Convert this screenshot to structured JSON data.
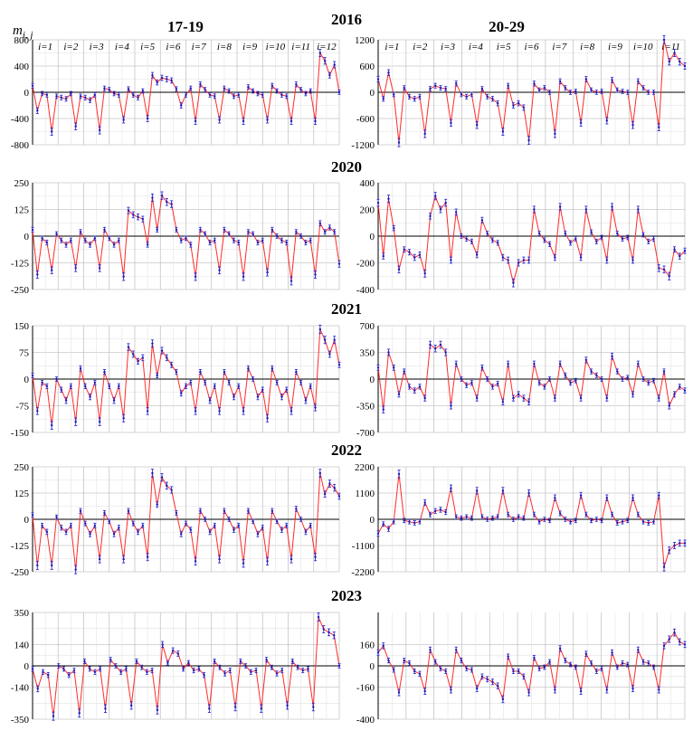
{
  "figure": {
    "y_label": "m",
    "y_label_sub": "i, j",
    "columns": [
      "17-19",
      "20-29"
    ],
    "group_prefix": "i="
  },
  "chart_data": [
    {
      "type": "line",
      "year": "2016",
      "age_group": "17-19",
      "ylim": [
        -800,
        800
      ],
      "yticks": [
        -800,
        -400,
        0,
        400,
        800
      ],
      "groups": [
        "1",
        "2",
        "3",
        "4",
        "5",
        "6",
        "7",
        "8",
        "9",
        "10",
        "11",
        "12"
      ],
      "series": [
        {
          "name": "m_ij",
          "values": [
            100,
            -280,
            -20,
            -40,
            -600,
            -60,
            -80,
            -100,
            -20,
            -520,
            -60,
            -80,
            -120,
            -40,
            -580,
            60,
            40,
            -20,
            -40,
            -420,
            50,
            -40,
            -80,
            20,
            -400,
            260,
            150,
            220,
            200,
            180,
            50,
            -200,
            -40,
            60,
            -440,
            120,
            40,
            -40,
            -60,
            -420,
            60,
            20,
            -60,
            -40,
            -440,
            80,
            20,
            -20,
            -40,
            -420,
            100,
            20,
            -40,
            -60,
            -440,
            120,
            40,
            -20,
            20,
            -440,
            600,
            480,
            260,
            420,
            0
          ]
        }
      ]
    },
    {
      "type": "line",
      "year": "2016",
      "age_group": "20-29",
      "ylim": [
        -1200,
        1200
      ],
      "yticks": [
        -1200,
        -600,
        0,
        600,
        1200
      ],
      "groups": [
        "1",
        "2",
        "3",
        "4",
        "5",
        "6",
        "7",
        "8",
        "9",
        "10",
        "11"
      ],
      "series": [
        {
          "name": "m_ij",
          "values": [
            300,
            -150,
            450,
            -50,
            -1150,
            100,
            -100,
            -150,
            -100,
            -950,
            80,
            150,
            100,
            80,
            -700,
            200,
            -50,
            -100,
            -50,
            -750,
            80,
            -100,
            -150,
            -250,
            -900,
            150,
            -300,
            -250,
            -350,
            -1100,
            200,
            50,
            100,
            0,
            -950,
            250,
            100,
            0,
            20,
            -700,
            300,
            50,
            0,
            20,
            -650,
            280,
            50,
            20,
            0,
            -750,
            250,
            100,
            0,
            0,
            -800,
            1200,
            700,
            900,
            700,
            600
          ]
        }
      ]
    },
    {
      "type": "line",
      "year": "2020",
      "age_group": "17-19",
      "ylim": [
        -250,
        250
      ],
      "yticks": [
        -250,
        -125,
        0,
        125,
        250
      ],
      "groups": [
        "1",
        "2",
        "3",
        "4",
        "5",
        "6",
        "7",
        "8",
        "9",
        "10",
        "11",
        "12"
      ],
      "series": [
        {
          "name": "m_ij",
          "values": [
            30,
            -180,
            -10,
            -30,
            -160,
            10,
            -20,
            -40,
            -20,
            -150,
            20,
            -20,
            -40,
            -10,
            -150,
            30,
            -10,
            -40,
            -20,
            -190,
            120,
            100,
            90,
            80,
            -40,
            180,
            30,
            190,
            160,
            150,
            30,
            -20,
            -10,
            -40,
            -190,
            30,
            10,
            -30,
            -20,
            -160,
            30,
            10,
            -20,
            -30,
            -190,
            20,
            10,
            -30,
            -20,
            -170,
            30,
            0,
            -20,
            -30,
            -210,
            20,
            0,
            -30,
            -20,
            -180,
            60,
            20,
            40,
            20,
            -130
          ]
        }
      ]
    },
    {
      "type": "line",
      "year": "2020",
      "age_group": "20-29",
      "ylim": [
        -400,
        400
      ],
      "yticks": [
        -400,
        -200,
        0,
        200,
        400
      ],
      "groups": [
        "1",
        "2",
        "3",
        "4",
        "5",
        "6",
        "7",
        "8",
        "9",
        "10",
        "11"
      ],
      "series": [
        {
          "name": "m_ij",
          "values": [
            250,
            -150,
            280,
            60,
            -250,
            -100,
            -120,
            -160,
            -140,
            -280,
            150,
            300,
            200,
            250,
            -180,
            180,
            0,
            -20,
            -40,
            -140,
            120,
            20,
            -30,
            -50,
            -160,
            -180,
            -350,
            -200,
            -180,
            -180,
            200,
            20,
            -30,
            -60,
            -160,
            220,
            20,
            -50,
            -20,
            -160,
            200,
            30,
            -40,
            -10,
            -180,
            220,
            20,
            -20,
            -10,
            -180,
            200,
            10,
            -40,
            -20,
            -240,
            -250,
            -300,
            -100,
            -150,
            -110
          ]
        }
      ]
    },
    {
      "type": "line",
      "year": "2021",
      "age_group": "17-19",
      "ylim": [
        -150,
        150
      ],
      "yticks": [
        -150,
        -75,
        0,
        75,
        150
      ],
      "groups": [
        "1",
        "2",
        "3",
        "4",
        "5",
        "6",
        "7",
        "8",
        "9",
        "10",
        "11",
        "12"
      ],
      "series": [
        {
          "name": "m_ij",
          "values": [
            10,
            -90,
            -10,
            -20,
            -130,
            0,
            -30,
            -60,
            -20,
            -120,
            30,
            -20,
            -50,
            -10,
            -120,
            20,
            -20,
            -60,
            -20,
            -110,
            90,
            70,
            50,
            60,
            -90,
            100,
            10,
            80,
            60,
            40,
            20,
            -40,
            -20,
            -10,
            -90,
            20,
            -10,
            -60,
            -20,
            -90,
            20,
            -10,
            -50,
            -20,
            -90,
            30,
            0,
            -50,
            -30,
            -110,
            30,
            -10,
            -50,
            -30,
            -90,
            20,
            -10,
            -60,
            -20,
            -80,
            140,
            110,
            70,
            110,
            40
          ]
        }
      ]
    },
    {
      "type": "line",
      "year": "2021",
      "age_group": "20-29",
      "ylim": [
        -700,
        700
      ],
      "yticks": [
        -700,
        -350,
        0,
        350,
        700
      ],
      "groups": [
        "1",
        "2",
        "3",
        "4",
        "5",
        "6",
        "7",
        "8",
        "9",
        "10",
        "11"
      ],
      "series": [
        {
          "name": "m_ij",
          "values": [
            150,
            -400,
            350,
            150,
            -200,
            100,
            -100,
            -150,
            -100,
            -250,
            450,
            400,
            450,
            350,
            -350,
            200,
            0,
            -80,
            -50,
            -250,
            150,
            0,
            -100,
            -60,
            -300,
            200,
            -250,
            -200,
            -250,
            -300,
            200,
            -50,
            -100,
            0,
            -250,
            200,
            50,
            -50,
            -20,
            -250,
            250,
            100,
            50,
            0,
            -250,
            300,
            100,
            0,
            20,
            -200,
            200,
            0,
            -50,
            -20,
            -250,
            100,
            -350,
            -200,
            -100,
            -150
          ]
        }
      ]
    },
    {
      "type": "line",
      "year": "2022",
      "age_group": "17-19",
      "ylim": [
        -250,
        250
      ],
      "yticks": [
        -250,
        -125,
        0,
        125,
        250
      ],
      "groups": [
        "1",
        "2",
        "3",
        "4",
        "5",
        "6",
        "7",
        "8",
        "9",
        "10",
        "11",
        "12"
      ],
      "series": [
        {
          "name": "m_ij",
          "values": [
            20,
            -220,
            -30,
            -60,
            -220,
            10,
            -40,
            -60,
            -30,
            -240,
            40,
            -20,
            -70,
            -30,
            -190,
            30,
            -10,
            -70,
            -40,
            -190,
            40,
            -20,
            -60,
            -30,
            -180,
            220,
            70,
            200,
            160,
            140,
            30,
            -70,
            -20,
            -50,
            -200,
            40,
            0,
            -60,
            -30,
            -190,
            40,
            0,
            -50,
            -30,
            -210,
            40,
            -10,
            -70,
            -40,
            -200,
            40,
            -10,
            -50,
            -30,
            -190,
            50,
            0,
            -60,
            -30,
            -180,
            220,
            120,
            170,
            150,
            110
          ]
        }
      ]
    },
    {
      "type": "line",
      "year": "2022",
      "age_group": "20-29",
      "ylim": [
        -2200,
        2200
      ],
      "yticks": [
        -2200,
        -1100,
        0,
        1100,
        2200
      ],
      "groups": [
        "1",
        "2",
        "3",
        "4",
        "5",
        "6",
        "7",
        "8",
        "9",
        "10",
        "11"
      ],
      "series": [
        {
          "name": "m_ij",
          "values": [
            -600,
            -200,
            -400,
            -100,
            1900,
            -50,
            -100,
            -150,
            -100,
            700,
            200,
            350,
            400,
            300,
            1300,
            100,
            50,
            100,
            50,
            1200,
            100,
            0,
            50,
            100,
            1200,
            200,
            0,
            100,
            50,
            1100,
            200,
            -100,
            0,
            -50,
            900,
            250,
            0,
            -100,
            -50,
            1000,
            200,
            -50,
            0,
            -50,
            900,
            200,
            -150,
            -100,
            -50,
            900,
            200,
            -100,
            -150,
            -100,
            1000,
            -2000,
            -1300,
            -1100,
            -1000,
            -1000
          ]
        }
      ]
    },
    {
      "type": "line",
      "year": "2023",
      "age_group": "17-19",
      "ylim": [
        -350,
        350
      ],
      "yticks": [
        -350,
        -140,
        0,
        140,
        350
      ],
      "groups": [
        "1",
        "2",
        "3",
        "4",
        "5",
        "6",
        "7",
        "8",
        "9",
        "10",
        "11",
        "12"
      ],
      "series": [
        {
          "name": "m_ij",
          "values": [
            -20,
            -150,
            -40,
            -60,
            -330,
            0,
            -20,
            -60,
            -30,
            -310,
            30,
            -20,
            -40,
            -20,
            -280,
            40,
            0,
            -40,
            -20,
            -260,
            30,
            -10,
            -40,
            -30,
            -290,
            140,
            20,
            100,
            80,
            -20,
            20,
            -30,
            -20,
            -60,
            -280,
            30,
            -10,
            -50,
            -30,
            -270,
            30,
            0,
            -40,
            -30,
            -280,
            40,
            -10,
            -50,
            -30,
            -260,
            30,
            -10,
            -30,
            -20,
            -270,
            320,
            240,
            220,
            200,
            0
          ]
        }
      ]
    },
    {
      "type": "line",
      "year": "2023",
      "age_group": "20-29",
      "ylim": [
        -400,
        400
      ],
      "yticks": [
        -400,
        -160,
        0,
        160
      ],
      "groups": [
        "1",
        "2",
        "3",
        "4",
        "5",
        "6",
        "7",
        "8",
        "9",
        "10",
        "11"
      ],
      "series": [
        {
          "name": "m_ij",
          "values": [
            100,
            150,
            40,
            -30,
            -200,
            40,
            20,
            -40,
            -60,
            -190,
            120,
            30,
            -20,
            -40,
            -180,
            120,
            40,
            -20,
            -30,
            -170,
            -80,
            -100,
            -120,
            -150,
            -250,
            70,
            -40,
            -40,
            -80,
            -200,
            60,
            -20,
            -10,
            30,
            -180,
            130,
            40,
            10,
            -10,
            -190,
            90,
            20,
            -40,
            -20,
            -180,
            100,
            -10,
            20,
            10,
            -170,
            120,
            30,
            20,
            -10,
            -180,
            150,
            200,
            250,
            180,
            160
          ]
        }
      ]
    }
  ]
}
